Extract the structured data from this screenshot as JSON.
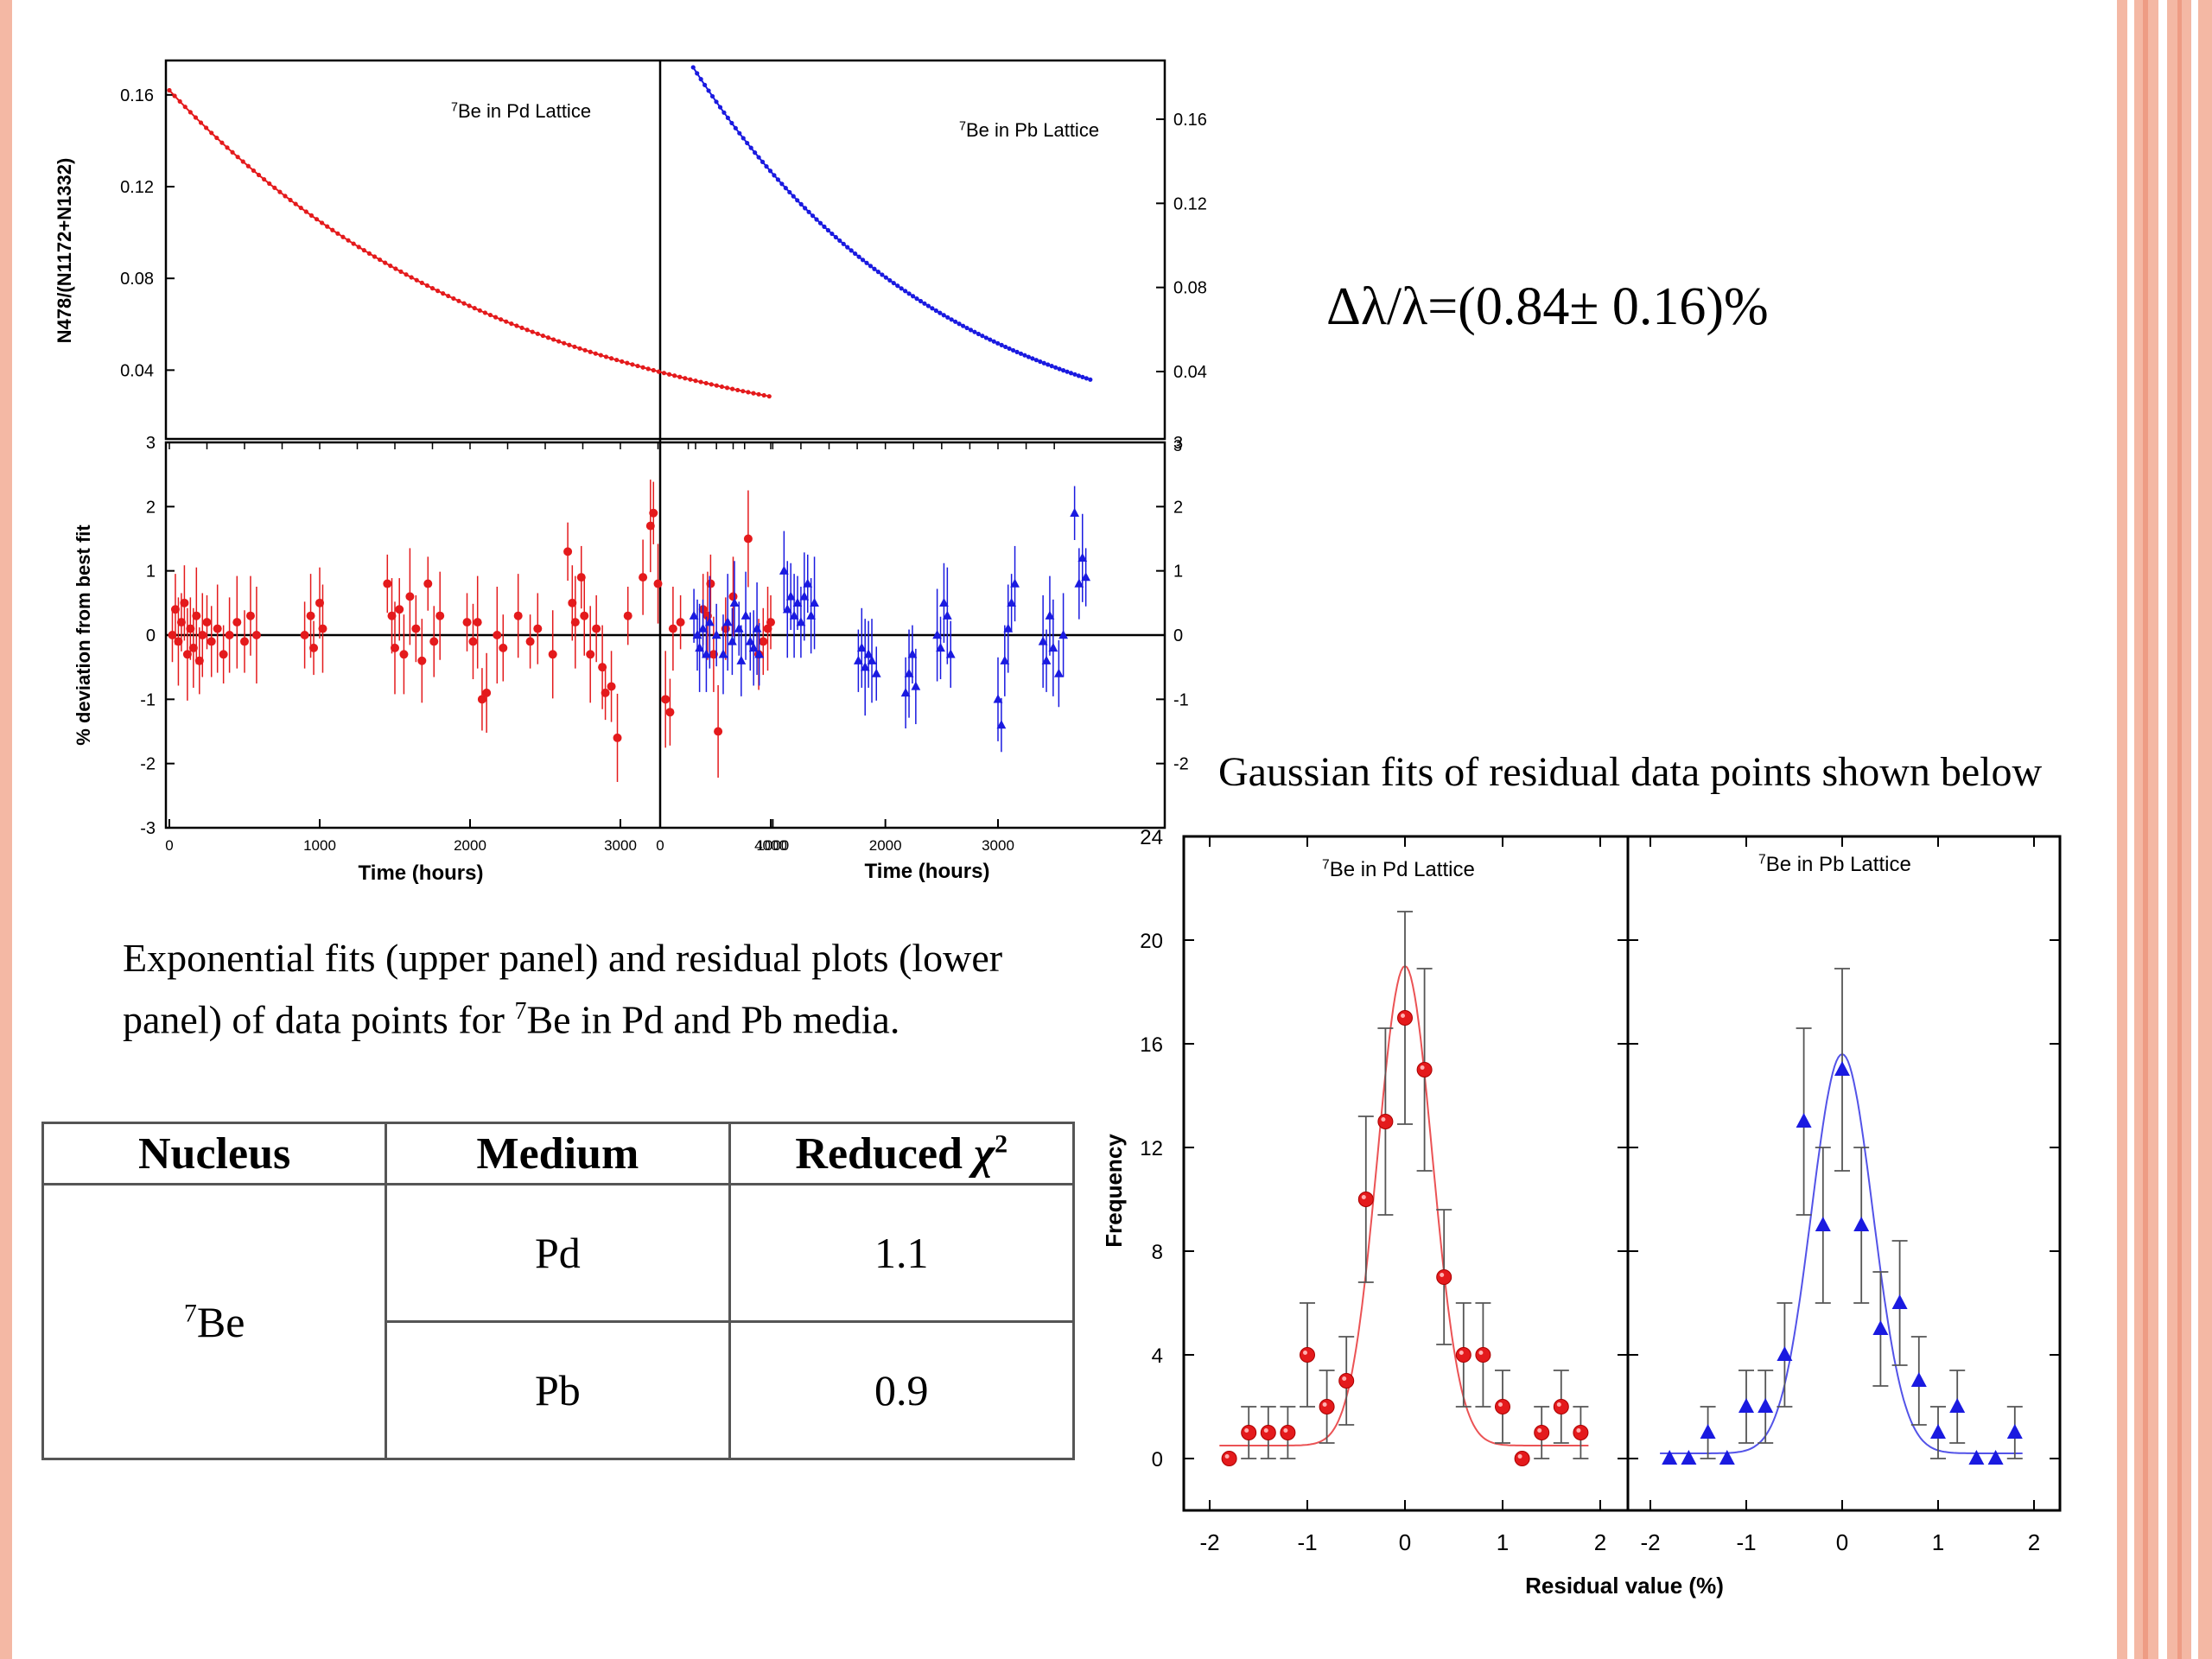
{
  "formula": "Δλ/λ=(0.84± 0.16)%",
  "gaussian_title": "Gaussian fits of residual data points shown below",
  "caption": {
    "part1": "Exponential fits (upper panel) and residual plots (lower panel) of data points for ",
    "sup": "7",
    "part2": "Be in Pd and Pb media."
  },
  "table": {
    "headers": [
      "Nucleus",
      "Medium",
      "Reduced "
    ],
    "chi_symbol": "χ",
    "chi_sup": "2",
    "nucleus_sup": "7",
    "nucleus": "Be",
    "rows": [
      {
        "medium": "Pd",
        "chi2": "1.1"
      },
      {
        "medium": "Pb",
        "chi2": "0.9"
      }
    ]
  },
  "colors": {
    "pd": "#e41a1c",
    "pb": "#1a1ae0",
    "stripe": "#f4b8a4",
    "stripe_dark": "#ee9c84"
  },
  "chart_data": [
    {
      "id": "decay",
      "type": "line",
      "panels": [
        {
          "label_sup": "7",
          "label": "Be in Pd Lattice",
          "color": "#e41a1c",
          "x_range": [
            0,
            4000
          ],
          "n0": 0.162,
          "tau": 2300
        },
        {
          "label_sup": "7",
          "label": "Be in Pb Lattice",
          "color": "#1a1ae0",
          "x_range": [
            300,
            3930
          ],
          "n0": 0.172,
          "tau": 2300
        }
      ],
      "ylabel": "N478/(N1172+N1332)",
      "ylim": [
        0.01,
        0.175
      ],
      "yticks_left": [
        "0.04",
        "0.08",
        "0.12",
        "0.16"
      ],
      "yticks_right": [
        "0.04",
        "0.08",
        "0.12",
        "0.16"
      ]
    },
    {
      "id": "residuals",
      "type": "scatter",
      "ylabel": "% deviation from best fit",
      "xlabel": "Time (hours)",
      "ylim": [
        -3,
        3
      ],
      "yticks": [
        "-3",
        "-2",
        "-1",
        "0",
        "1",
        "2",
        "3"
      ],
      "xticks_left": [
        "0",
        "1000",
        "2000",
        "3000",
        "4000"
      ],
      "xticks_right": [
        "0",
        "1000",
        "2000",
        "3000"
      ],
      "panels": [
        {
          "color": "#e41a1c",
          "marker": "circle",
          "points": [
            [
              20,
              0.0
            ],
            [
              40,
              0.4
            ],
            [
              60,
              -0.1
            ],
            [
              80,
              0.2
            ],
            [
              100,
              0.5
            ],
            [
              120,
              -0.3
            ],
            [
              140,
              0.1
            ],
            [
              160,
              -0.2
            ],
            [
              180,
              0.3
            ],
            [
              200,
              -0.4
            ],
            [
              220,
              0.0
            ],
            [
              250,
              0.2
            ],
            [
              280,
              -0.1
            ],
            [
              320,
              0.1
            ],
            [
              360,
              -0.3
            ],
            [
              400,
              0.0
            ],
            [
              450,
              0.2
            ],
            [
              500,
              -0.1
            ],
            [
              540,
              0.3
            ],
            [
              580,
              0.0
            ],
            [
              900,
              0.0
            ],
            [
              940,
              0.3
            ],
            [
              960,
              -0.2
            ],
            [
              1000,
              0.5
            ],
            [
              1020,
              0.1
            ],
            [
              1450,
              0.8
            ],
            [
              1480,
              0.3
            ],
            [
              1500,
              -0.2
            ],
            [
              1530,
              0.4
            ],
            [
              1560,
              -0.3
            ],
            [
              1600,
              0.6
            ],
            [
              1640,
              0.1
            ],
            [
              1680,
              -0.4
            ],
            [
              1720,
              0.8
            ],
            [
              1760,
              -0.1
            ],
            [
              1800,
              0.3
            ],
            [
              1980,
              0.2
            ],
            [
              2020,
              -0.1
            ],
            [
              2050,
              0.2
            ],
            [
              2080,
              -1.0
            ],
            [
              2110,
              -0.9
            ],
            [
              2180,
              0.0
            ],
            [
              2220,
              -0.2
            ],
            [
              2320,
              0.3
            ],
            [
              2400,
              -0.1
            ],
            [
              2450,
              0.1
            ],
            [
              2550,
              -0.3
            ],
            [
              2650,
              1.3
            ],
            [
              2680,
              0.5
            ],
            [
              2700,
              0.2
            ],
            [
              2740,
              0.9
            ],
            [
              2760,
              0.3
            ],
            [
              2800,
              -0.3
            ],
            [
              2840,
              0.1
            ],
            [
              2880,
              -0.5
            ],
            [
              2900,
              -0.9
            ],
            [
              2940,
              -0.8
            ],
            [
              2980,
              -1.6
            ],
            [
              3050,
              0.3
            ],
            [
              3150,
              0.9
            ],
            [
              3200,
              1.7
            ],
            [
              3220,
              1.9
            ],
            [
              3250,
              0.8
            ],
            [
              3300,
              -1.0
            ],
            [
              3330,
              -1.2
            ],
            [
              3350,
              0.1
            ],
            [
              3400,
              0.2
            ],
            [
              3550,
              0.4
            ],
            [
              3580,
              0.3
            ],
            [
              3600,
              0.8
            ],
            [
              3620,
              -0.3
            ],
            [
              3650,
              -1.5
            ],
            [
              3700,
              0.1
            ],
            [
              3750,
              0.6
            ],
            [
              3850,
              1.5
            ],
            [
              3950,
              -0.1
            ],
            [
              3980,
              0.1
            ],
            [
              4000,
              0.2
            ],
            [
              3920,
              -0.3
            ]
          ]
        },
        {
          "color": "#1a1ae0",
          "marker": "triangle",
          "points": [
            [
              300,
              0.3
            ],
            [
              330,
              0.0
            ],
            [
              350,
              -0.2
            ],
            [
              380,
              0.1
            ],
            [
              410,
              -0.3
            ],
            [
              440,
              0.2
            ],
            [
              500,
              0.0
            ],
            [
              560,
              -0.3
            ],
            [
              600,
              0.2
            ],
            [
              640,
              -0.1
            ],
            [
              660,
              0.5
            ],
            [
              700,
              0.1
            ],
            [
              720,
              -0.4
            ],
            [
              760,
              0.3
            ],
            [
              800,
              -0.1
            ],
            [
              830,
              -0.2
            ],
            [
              860,
              0.1
            ],
            [
              880,
              -0.3
            ],
            [
              1100,
              1.0
            ],
            [
              1130,
              0.4
            ],
            [
              1160,
              0.6
            ],
            [
              1190,
              0.3
            ],
            [
              1220,
              0.5
            ],
            [
              1250,
              0.2
            ],
            [
              1280,
              0.6
            ],
            [
              1310,
              0.8
            ],
            [
              1340,
              0.3
            ],
            [
              1370,
              0.5
            ],
            [
              1760,
              -0.4
            ],
            [
              1790,
              -0.2
            ],
            [
              1820,
              -0.5
            ],
            [
              1850,
              -0.3
            ],
            [
              1880,
              -0.4
            ],
            [
              1920,
              -0.6
            ],
            [
              2180,
              -0.9
            ],
            [
              2210,
              -0.6
            ],
            [
              2240,
              -0.3
            ],
            [
              2270,
              -0.8
            ],
            [
              2460,
              0.0
            ],
            [
              2490,
              -0.2
            ],
            [
              2520,
              0.5
            ],
            [
              2550,
              0.3
            ],
            [
              2580,
              -0.3
            ],
            [
              3000,
              -1.0
            ],
            [
              3030,
              -1.4
            ],
            [
              3060,
              -0.4
            ],
            [
              3090,
              0.1
            ],
            [
              3120,
              0.5
            ],
            [
              3150,
              0.8
            ],
            [
              3400,
              -0.1
            ],
            [
              3430,
              -0.4
            ],
            [
              3460,
              0.3
            ],
            [
              3490,
              -0.2
            ],
            [
              3540,
              -0.6
            ],
            [
              3580,
              0.0
            ],
            [
              3680,
              1.9
            ],
            [
              3720,
              0.8
            ],
            [
              3750,
              1.2
            ],
            [
              3780,
              0.9
            ]
          ]
        }
      ]
    },
    {
      "id": "gaussian",
      "type": "scatter",
      "ylabel": "Frequency",
      "xlabel": "Residual value (%)",
      "xlim": [
        -2.1,
        2.2
      ],
      "ylim": [
        -2,
        24
      ],
      "yticks": [
        "0",
        "4",
        "8",
        "12",
        "16",
        "20",
        "24"
      ],
      "xticks_left": [
        "-2",
        "-1",
        "0",
        "1",
        "2"
      ],
      "xticks_right": [
        "-2",
        "-1",
        "0",
        "1",
        "2"
      ],
      "panels": [
        {
          "label_sup": "7",
          "label": "Be in Pd Lattice",
          "color": "#e41a1c",
          "marker": "circle",
          "fit": {
            "base": 0.5,
            "amp": 18.5,
            "sigma": 0.28
          },
          "points": [
            [
              -1.8,
              0
            ],
            [
              -1.6,
              1
            ],
            [
              -1.4,
              1
            ],
            [
              -1.2,
              1
            ],
            [
              -1.0,
              4
            ],
            [
              -0.8,
              2
            ],
            [
              -0.6,
              3
            ],
            [
              -0.4,
              10
            ],
            [
              -0.2,
              13
            ],
            [
              0.0,
              17
            ],
            [
              0.2,
              15
            ],
            [
              0.4,
              7
            ],
            [
              0.6,
              4
            ],
            [
              0.8,
              4
            ],
            [
              1.0,
              2
            ],
            [
              1.2,
              0
            ],
            [
              1.4,
              1
            ],
            [
              1.6,
              2
            ],
            [
              1.8,
              1
            ]
          ],
          "errors": [
            0,
            1,
            1,
            1,
            2,
            1.4,
            1.7,
            3.2,
            3.6,
            4.1,
            3.9,
            2.6,
            2,
            2,
            1.4,
            0,
            1,
            1.4,
            1
          ]
        },
        {
          "label_sup": "7",
          "label": "Be in Pb Lattice",
          "color": "#1a1ae0",
          "marker": "triangle",
          "fit": {
            "base": 0.2,
            "amp": 15.4,
            "sigma": 0.32
          },
          "points": [
            [
              -1.8,
              0
            ],
            [
              -1.6,
              0
            ],
            [
              -1.4,
              1
            ],
            [
              -1.2,
              0
            ],
            [
              -1.0,
              2
            ],
            [
              -0.8,
              2
            ],
            [
              -0.6,
              4
            ],
            [
              -0.4,
              13
            ],
            [
              -0.2,
              9
            ],
            [
              0.0,
              15
            ],
            [
              0.2,
              9
            ],
            [
              0.4,
              5
            ],
            [
              0.6,
              6
            ],
            [
              0.8,
              3
            ],
            [
              1.0,
              1
            ],
            [
              1.2,
              2
            ],
            [
              1.4,
              0
            ],
            [
              1.6,
              0
            ],
            [
              1.8,
              1
            ]
          ],
          "errors": [
            0,
            0,
            1,
            0,
            1.4,
            1.4,
            2,
            3.6,
            3,
            3.9,
            3,
            2.2,
            2.4,
            1.7,
            1,
            1.4,
            0,
            0,
            1
          ]
        }
      ]
    }
  ]
}
